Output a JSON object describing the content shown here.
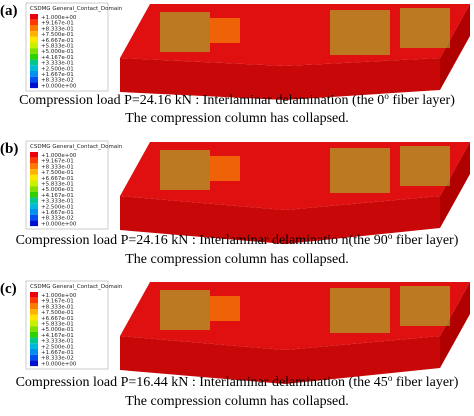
{
  "panels": [
    {
      "label": "(a)",
      "legend_title": "CSDMG General_Contact_Domain",
      "legend_values": [
        "+1.000e+00",
        "+9.167e-01",
        "+8.333e-01",
        "+7.500e-01",
        "+6.667e-01",
        "+5.833e-01",
        "+5.000e-01",
        "+4.167e-01",
        "+3.333e-01",
        "+2.500e-01",
        "+1.667e-01",
        "+8.333e-02",
        "+0.000e+00"
      ],
      "caption_line1_before": "Compression load P=24.16 kN : Interlaminar delamination (the 0",
      "caption_line1_sup": "o",
      "caption_line1_after": " fiber layer)",
      "caption_line2": "The compression column has collapsed."
    },
    {
      "label": "(b)",
      "legend_title": "CSDMG General_Contact_Domain",
      "legend_values": [
        "+1.000e+00",
        "+9.167e-01",
        "+8.333e-01",
        "+7.500e-01",
        "+6.667e-01",
        "+5.833e-01",
        "+5.000e-01",
        "+4.167e-01",
        "+3.333e-01",
        "+2.500e-01",
        "+1.667e-01",
        "+8.333e-02",
        "+0.000e+00"
      ],
      "caption_line1_before": "Compression load P=24.16 kN : Interlaminar delaminatio n(the 90",
      "caption_line1_sup": "o",
      "caption_line1_after": " fiber layer)",
      "caption_line2": "The compression column has collapsed."
    },
    {
      "label": "(c)",
      "legend_title": "CSDMG General_Contact_Domain",
      "legend_values": [
        "+1.000e+00",
        "+9.167e-01",
        "+8.333e-01",
        "+7.500e-01",
        "+6.667e-01",
        "+5.833e-01",
        "+5.000e-01",
        "+4.167e-01",
        "+3.333e-01",
        "+2.500e-01",
        "+1.667e-01",
        "+8.333e-02",
        "+0.000e+00"
      ],
      "caption_line1_before": "Compression load P=16.44 kN : Interlaminar delamination (the 45",
      "caption_line1_sup": "o",
      "caption_line1_after": " fiber layer)",
      "caption_line2": "The compression column has collapsed."
    }
  ]
}
